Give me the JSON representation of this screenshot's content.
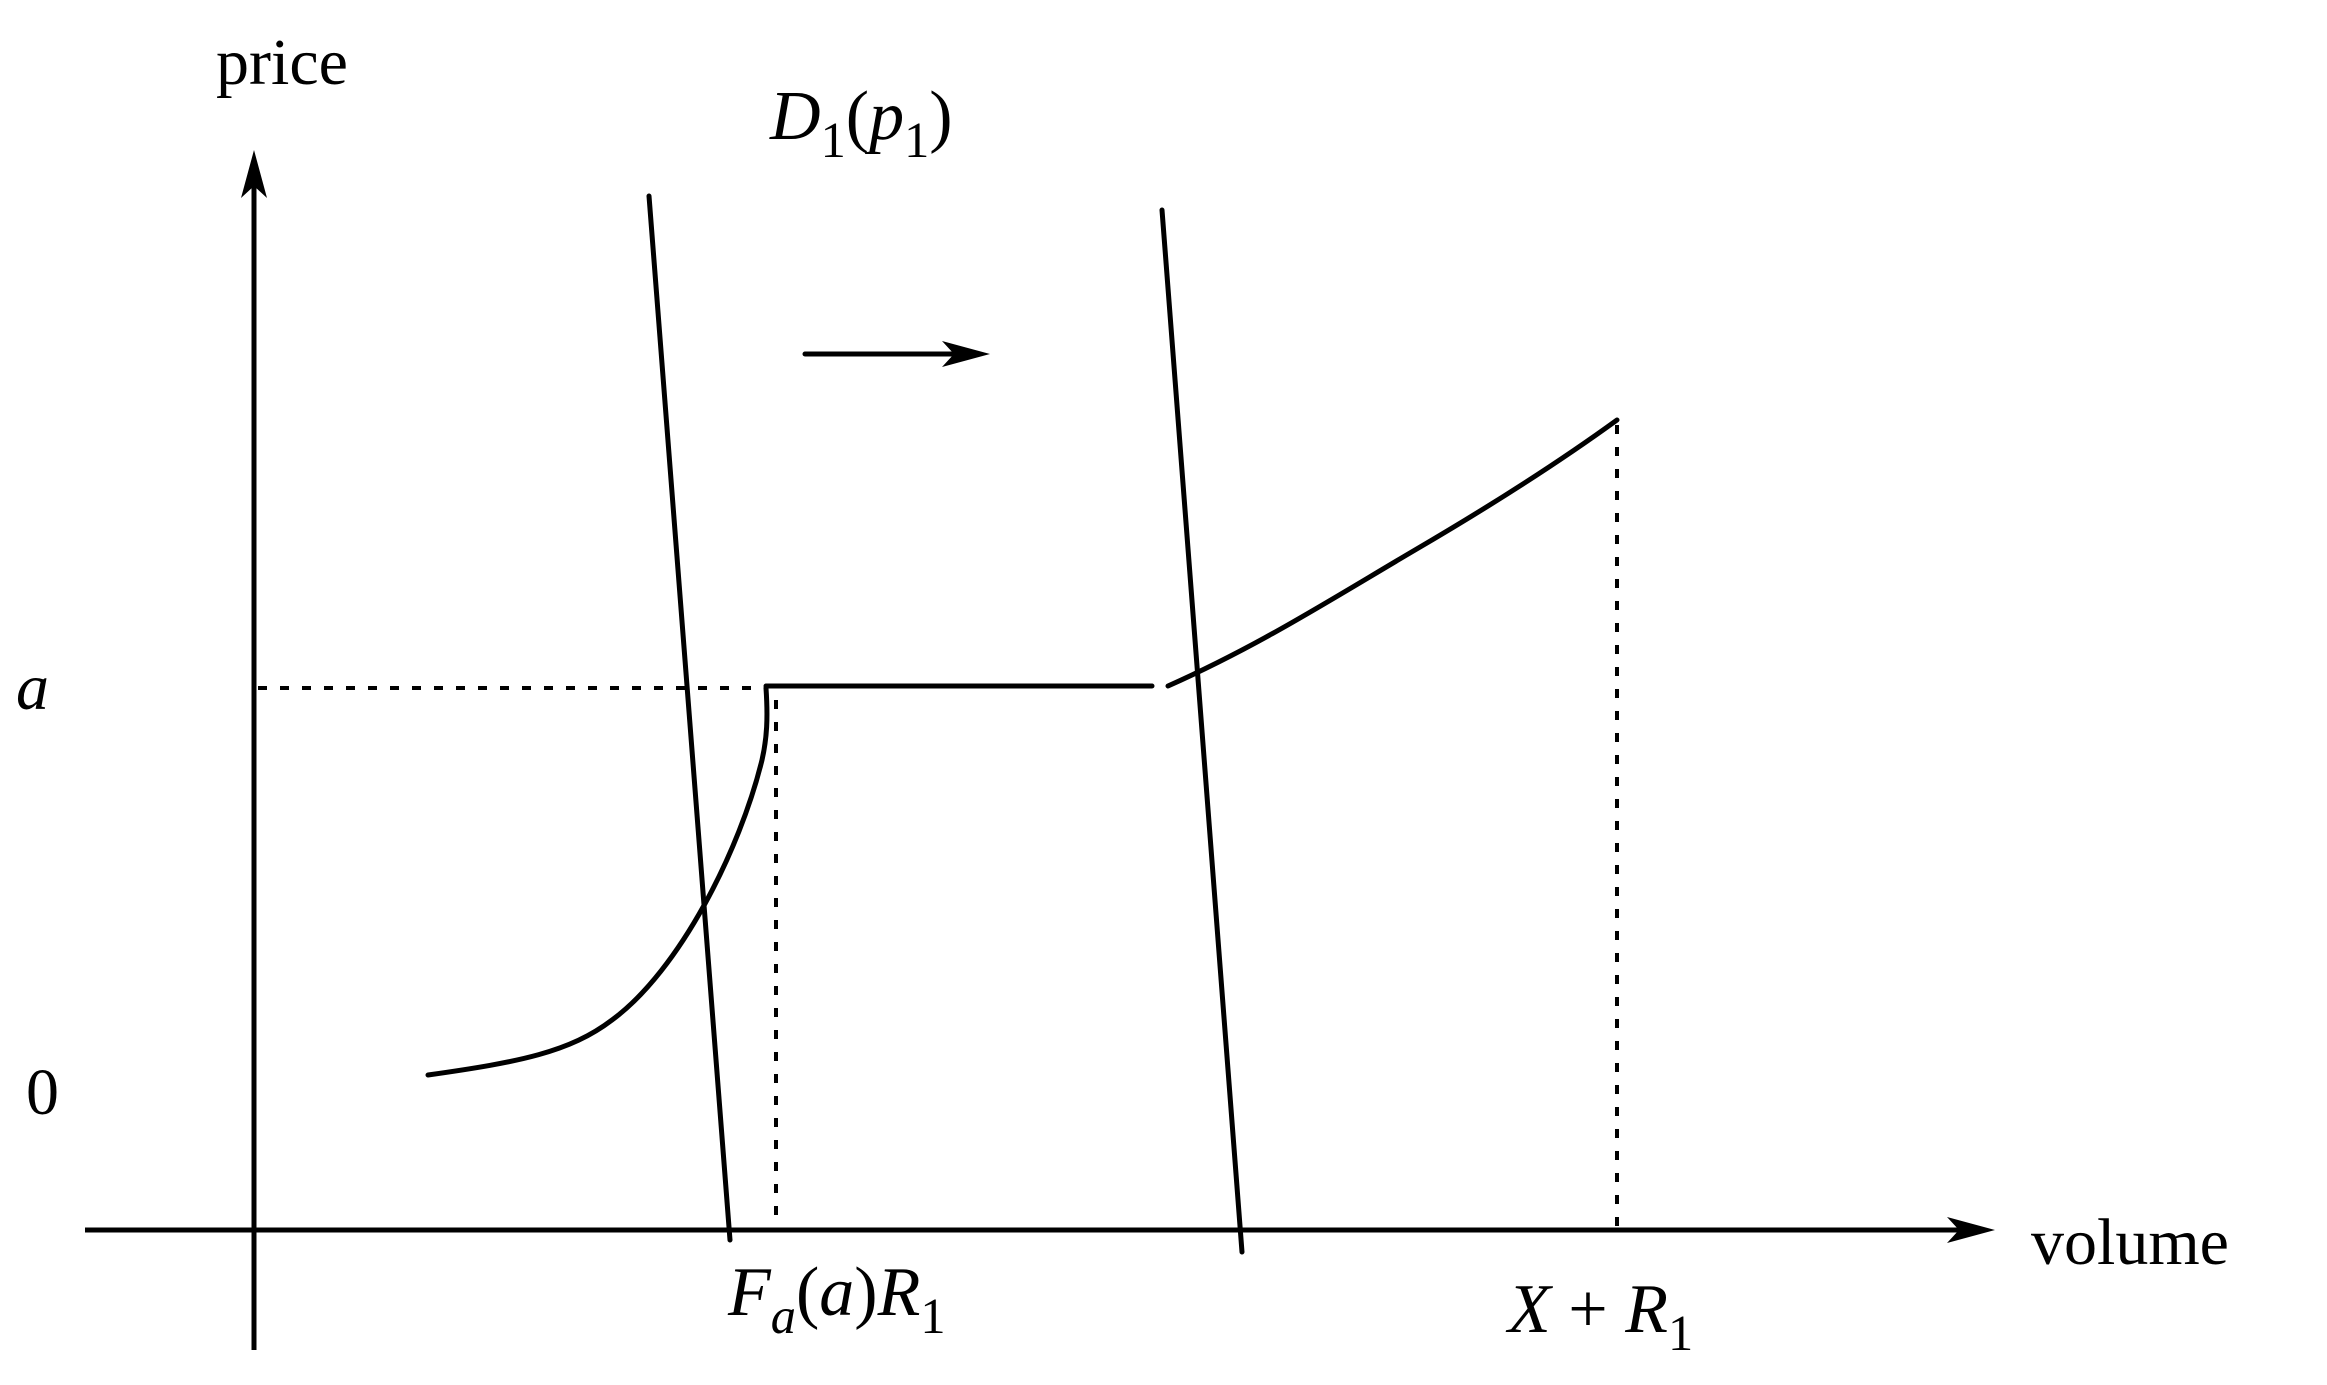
{
  "axes": {
    "y_label": "price",
    "x_label": "volume",
    "y_ticks": {
      "a": "a",
      "zero": "0"
    }
  },
  "labels": {
    "demand_curve": {
      "base": "D",
      "subscript": "1",
      "open": "(",
      "arg": "p",
      "arg_subscript": "1",
      "close": ")"
    },
    "x_tick_left": {
      "base": "F",
      "subscript": "a",
      "open": "(",
      "arg": "a",
      "close": ")",
      "tail": "R",
      "tail_subscript": "1"
    },
    "x_tick_right": {
      "base": "X",
      "operator": " + ",
      "tail": "R",
      "tail_subscript": "1"
    }
  },
  "colors": {
    "ink": "#000000",
    "background": "#ffffff"
  }
}
